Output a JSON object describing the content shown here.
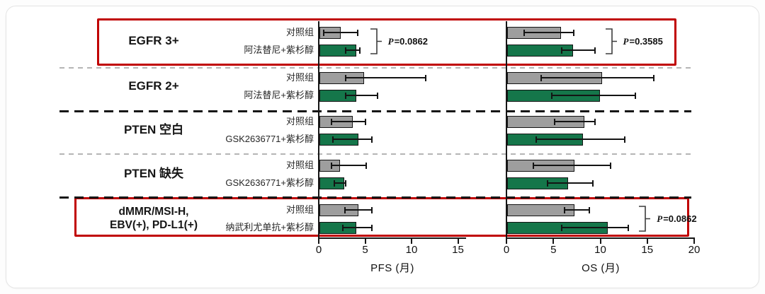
{
  "chart_data": {
    "type": "bar",
    "orientation": "horizontal",
    "title": "",
    "panels": [
      {
        "id": "pfs",
        "xlabel": "PFS (月)",
        "ticks": [
          0,
          5,
          10,
          15
        ],
        "xlim": [
          0,
          15.9
        ]
      },
      {
        "id": "os",
        "xlabel": "OS (月)",
        "ticks": [
          0,
          5,
          10,
          15,
          20
        ],
        "xlim": [
          0,
          20
        ]
      }
    ],
    "grid": false,
    "legend": "none",
    "colors": {
      "control": "#9e9e9e",
      "treatment": "#15764a",
      "bar_border": "#141414",
      "highlight": "#c00000"
    },
    "separators": [
      "light",
      "dark",
      "light",
      "dark"
    ],
    "groups": [
      {
        "label_lines": [
          "EGFR 3+"
        ],
        "highlighted": true,
        "p_pfs": "P=0.0862",
        "p_os": "P=0.3585",
        "rows": [
          {
            "label": "对照组",
            "series": "control",
            "pfs": {
              "v": 2.3,
              "lo": 0.5,
              "hi": 4.2
            },
            "os": {
              "v": 5.7,
              "lo": 1.9,
              "hi": 7.2
            }
          },
          {
            "label": "阿法替尼+紫杉醇",
            "series": "treatment",
            "pfs": {
              "v": 4.0,
              "lo": 2.9,
              "hi": 4.4
            },
            "os": {
              "v": 7.0,
              "lo": 5.9,
              "hi": 9.4
            }
          }
        ]
      },
      {
        "label_lines": [
          "EGFR 2+"
        ],
        "highlighted": false,
        "p_pfs": "",
        "p_os": "",
        "rows": [
          {
            "label": "对照组",
            "series": "control",
            "pfs": {
              "v": 4.8,
              "lo": 2.9,
              "hi": 11.5
            },
            "os": {
              "v": 10.1,
              "lo": 3.7,
              "hi": 15.7
            }
          },
          {
            "label": "阿法替尼+紫杉醇",
            "series": "treatment",
            "pfs": {
              "v": 4.0,
              "lo": 2.9,
              "hi": 6.3
            },
            "os": {
              "v": 9.9,
              "lo": 4.8,
              "hi": 13.7
            }
          }
        ]
      },
      {
        "label_lines": [
          "PTEN 空白"
        ],
        "highlighted": false,
        "p_pfs": "",
        "p_os": "",
        "rows": [
          {
            "label": "对照组",
            "series": "control",
            "pfs": {
              "v": 3.6,
              "lo": 1.4,
              "hi": 5.0
            },
            "os": {
              "v": 8.2,
              "lo": 5.1,
              "hi": 9.4
            }
          },
          {
            "label": "GSK2636771+紫杉醇",
            "series": "treatment",
            "pfs": {
              "v": 4.2,
              "lo": 1.5,
              "hi": 5.7
            },
            "os": {
              "v": 8.1,
              "lo": 3.2,
              "hi": 12.6
            }
          }
        ]
      },
      {
        "label_lines": [
          "PTEN 缺失"
        ],
        "highlighted": false,
        "p_pfs": "",
        "p_os": "",
        "rows": [
          {
            "label": "对照组",
            "series": "control",
            "pfs": {
              "v": 2.2,
              "lo": 1.4,
              "hi": 5.1
            },
            "os": {
              "v": 7.2,
              "lo": 2.9,
              "hi": 11.1
            }
          },
          {
            "label": "GSK2636771+紫杉醇",
            "series": "treatment",
            "pfs": {
              "v": 2.7,
              "lo": 1.7,
              "hi": 2.9
            },
            "os": {
              "v": 6.5,
              "lo": 4.4,
              "hi": 9.2
            }
          }
        ]
      },
      {
        "label_lines": [
          "dMMR/MSI-H,",
          "EBV(+), PD-L1(+)"
        ],
        "highlighted": true,
        "p_pfs": "",
        "p_os": "P=0.0862",
        "rows": [
          {
            "label": "对照组",
            "series": "control",
            "pfs": {
              "v": 4.2,
              "lo": 2.8,
              "hi": 5.7
            },
            "os": {
              "v": 7.2,
              "lo": 6.2,
              "hi": 8.8
            }
          },
          {
            "label": "纳武利尤单抗+紫杉醇",
            "series": "treatment",
            "pfs": {
              "v": 4.0,
              "lo": 2.6,
              "hi": 5.7
            },
            "os": {
              "v": 10.7,
              "lo": 5.9,
              "hi": 13.0
            }
          }
        ]
      }
    ]
  }
}
